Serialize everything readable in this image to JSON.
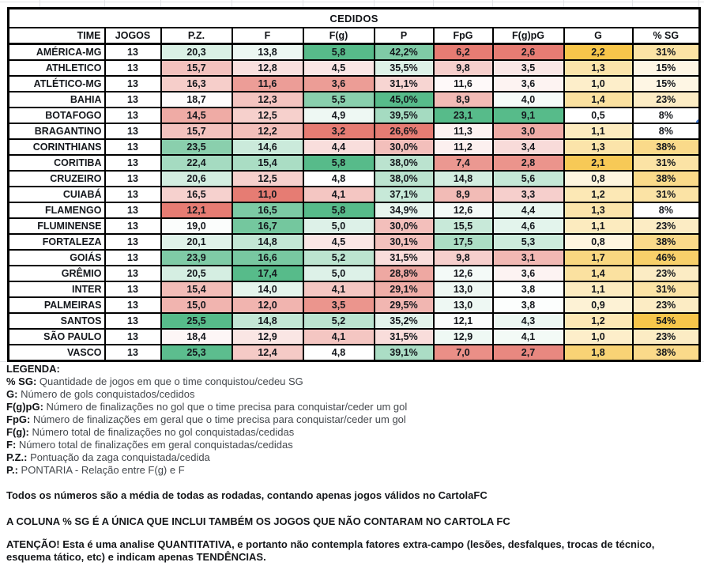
{
  "title": "CEDIDOS",
  "table": {
    "columns": [
      {
        "key": "time",
        "label": "TIME",
        "scale": "none"
      },
      {
        "key": "jogos",
        "label": "JOGOS",
        "scale": "none"
      },
      {
        "key": "pz",
        "label": "P.Z.",
        "scale": "rwg"
      },
      {
        "key": "f",
        "label": "F",
        "scale": "rwg"
      },
      {
        "key": "fg",
        "label": "F(g)",
        "scale": "rwg"
      },
      {
        "key": "p",
        "label": "P",
        "scale": "rwg"
      },
      {
        "key": "fpg",
        "label": "FpG",
        "scale": "rwg"
      },
      {
        "key": "fgpg",
        "label": "F(g)pG",
        "scale": "rwg"
      },
      {
        "key": "g",
        "label": "G",
        "scale": "wy"
      },
      {
        "key": "sg",
        "label": "% SG",
        "scale": "wy"
      }
    ],
    "rows": [
      {
        "time": "AMÉRICA-MG",
        "jogos": "13",
        "pz": "20,3",
        "f": "13,8",
        "fg": "5,8",
        "p": "42,2%",
        "fpg": "6,2",
        "fgpg": "2,6",
        "g": "2,2",
        "sg": "31%"
      },
      {
        "time": "ATHLETICO",
        "jogos": "13",
        "pz": "15,7",
        "f": "12,8",
        "fg": "4,5",
        "p": "35,5%",
        "fpg": "9,8",
        "fgpg": "3,5",
        "g": "1,3",
        "sg": "15%"
      },
      {
        "time": "ATLÉTICO-MG",
        "jogos": "13",
        "pz": "16,3",
        "f": "11,6",
        "fg": "3,6",
        "p": "31,1%",
        "fpg": "11,6",
        "fgpg": "3,6",
        "g": "1,0",
        "sg": "15%"
      },
      {
        "time": "BAHIA",
        "jogos": "13",
        "pz": "18,7",
        "f": "12,3",
        "fg": "5,5",
        "p": "45,0%",
        "fpg": "8,9",
        "fgpg": "4,0",
        "g": "1,4",
        "sg": "23%"
      },
      {
        "time": "BOTAFOGO",
        "jogos": "13",
        "pz": "14,5",
        "f": "12,5",
        "fg": "4,9",
        "p": "39,5%",
        "fpg": "23,1",
        "fgpg": "9,1",
        "g": "0,5",
        "sg": "8%"
      },
      {
        "time": "BRAGANTINO",
        "jogos": "13",
        "pz": "15,7",
        "f": "12,2",
        "fg": "3,2",
        "p": "26,6%",
        "fpg": "11,3",
        "fgpg": "3,0",
        "g": "1,1",
        "sg": "8%"
      },
      {
        "time": "CORINTHIANS",
        "jogos": "13",
        "pz": "23,5",
        "f": "14,6",
        "fg": "4,4",
        "p": "30,0%",
        "fpg": "11,2",
        "fgpg": "3,4",
        "g": "1,3",
        "sg": "38%"
      },
      {
        "time": "CORITIBA",
        "jogos": "13",
        "pz": "22,4",
        "f": "15,4",
        "fg": "5,8",
        "p": "38,0%",
        "fpg": "7,4",
        "fgpg": "2,8",
        "g": "2,1",
        "sg": "31%"
      },
      {
        "time": "CRUZEIRO",
        "jogos": "13",
        "pz": "20,6",
        "f": "12,5",
        "fg": "4,8",
        "p": "38,0%",
        "fpg": "14,8",
        "fgpg": "5,6",
        "g": "0,8",
        "sg": "38%"
      },
      {
        "time": "CUIABÁ",
        "jogos": "13",
        "pz": "16,5",
        "f": "11,0",
        "fg": "4,1",
        "p": "37,1%",
        "fpg": "8,9",
        "fgpg": "3,3",
        "g": "1,2",
        "sg": "31%"
      },
      {
        "time": "FLAMENGO",
        "jogos": "13",
        "pz": "12,1",
        "f": "16,5",
        "fg": "5,8",
        "p": "34,9%",
        "fpg": "12,6",
        "fgpg": "4,4",
        "g": "1,3",
        "sg": "8%"
      },
      {
        "time": "FLUMINENSE",
        "jogos": "13",
        "pz": "19,0",
        "f": "16,7",
        "fg": "5,0",
        "p": "30,0%",
        "fpg": "15,5",
        "fgpg": "4,6",
        "g": "1,1",
        "sg": "23%"
      },
      {
        "time": "FORTALEZA",
        "jogos": "13",
        "pz": "20,1",
        "f": "14,8",
        "fg": "4,5",
        "p": "30,1%",
        "fpg": "17,5",
        "fgpg": "5,3",
        "g": "0,8",
        "sg": "38%"
      },
      {
        "time": "GOIÁS",
        "jogos": "13",
        "pz": "23,9",
        "f": "16,6",
        "fg": "5,2",
        "p": "31,5%",
        "fpg": "9,8",
        "fgpg": "3,1",
        "g": "1,7",
        "sg": "46%"
      },
      {
        "time": "GRÊMIO",
        "jogos": "13",
        "pz": "20,5",
        "f": "17,4",
        "fg": "5,0",
        "p": "28,8%",
        "fpg": "12,6",
        "fgpg": "3,6",
        "g": "1,4",
        "sg": "23%"
      },
      {
        "time": "INTER",
        "jogos": "13",
        "pz": "15,4",
        "f": "14,0",
        "fg": "4,1",
        "p": "29,1%",
        "fpg": "13,0",
        "fgpg": "3,8",
        "g": "1,1",
        "sg": "31%"
      },
      {
        "time": "PALMEIRAS",
        "jogos": "13",
        "pz": "15,0",
        "f": "12,0",
        "fg": "3,5",
        "p": "29,5%",
        "fpg": "13,0",
        "fgpg": "3,8",
        "g": "0,9",
        "sg": "23%"
      },
      {
        "time": "SANTOS",
        "jogos": "13",
        "pz": "25,5",
        "f": "14,8",
        "fg": "5,2",
        "p": "35,2%",
        "fpg": "12,1",
        "fgpg": "4,3",
        "g": "1,2",
        "sg": "54%"
      },
      {
        "time": "SÃO PAULO",
        "jogos": "13",
        "pz": "18,4",
        "f": "12,9",
        "fg": "4,1",
        "p": "31,5%",
        "fpg": "12,9",
        "fgpg": "4,1",
        "g": "1,0",
        "sg": "23%"
      },
      {
        "time": "VASCO",
        "jogos": "13",
        "pz": "25,3",
        "f": "12,4",
        "fg": "4,8",
        "p": "39,1%",
        "fpg": "7,0",
        "fgpg": "2,7",
        "g": "1,8",
        "sg": "38%"
      }
    ]
  },
  "selection": {
    "team": "BOTAFOGO",
    "column_key": "sg"
  },
  "colors": {
    "scale_red": "#e67c73",
    "scale_mid": "#ffffff",
    "scale_green": "#57bb8a",
    "scale_yellow": "#f7c64b",
    "selection_border": "#1b5393",
    "selection_handle": "#3d78d8",
    "gridline": "#e2e4e7"
  },
  "legend": {
    "heading": "LEGENDA:",
    "items": [
      {
        "term": "% SG:",
        "desc": "Quantidade de jogos em que o time conquistou/cedeu SG"
      },
      {
        "term": "G:",
        "desc": "Número de gols conquistados/cedidos"
      },
      {
        "term": "F(g)pG:",
        "desc": "Número de finalizações no gol que o time precisa para conquistar/ceder um gol"
      },
      {
        "term": "FpG:",
        "desc": "Número de finalizações em geral que o time precisa para conquistar/ceder um gol"
      },
      {
        "term": "F(g):",
        "desc": "Número total de finalizações no gol conquistadas/cedidas"
      },
      {
        "term": "F:",
        "desc": "Número total de finalizações em geral conquistadas/cedidas"
      },
      {
        "term": "P.Z.:",
        "desc": "Pontuação da zaga conquistada/cedida"
      },
      {
        "term": "P.:",
        "desc": "PONTARIA - Relação entre F(g) e F"
      }
    ]
  },
  "notes": [
    "Todos os números são a média de todas as rodadas, contando apenas jogos válidos no CartolaFC",
    "A COLUNA % SG É A ÚNICA QUE INCLUI TAMBÉM OS JOGOS QUE NÃO CONTARAM NO CARTOLA FC",
    "ATENÇÃO! Esta é uma analise QUANTITATIVA, e portanto não contempla fatores extra-campo (lesões, desfalques, trocas de técnico, esquema tático, etc) e indicam apenas TENDÊNCIAS."
  ]
}
